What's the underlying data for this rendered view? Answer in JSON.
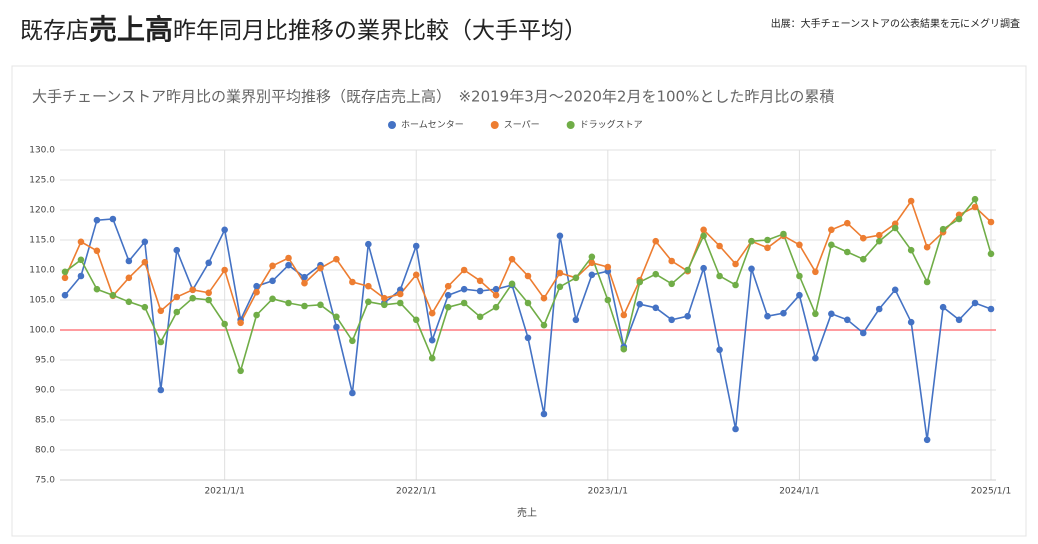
{
  "chart_data": {
    "type": "line",
    "title": [
      "既存店",
      "売上高",
      "昨年同月比推移の業界比較（大手平均）"
    ],
    "source": "出展：大手チェーンストアの公表結果を元にメグリ調査",
    "subtitle": "大手チェーンストア昨月比の業界別平均推移（既存店売上高）　※2019年3月～2020年2月を100%とした昨月比の累積",
    "xlabel": "売上",
    "legend": "top",
    "grid": true,
    "reference_line": {
      "value": 100,
      "color": "#ff7c80"
    },
    "x": [
      "2020/3/1",
      "2020/4/1",
      "2020/5/1",
      "2020/6/1",
      "2020/7/1",
      "2020/8/1",
      "2020/9/1",
      "2020/10/1",
      "2020/11/1",
      "2020/12/1",
      "2021/1/1",
      "2021/2/1",
      "2021/3/1",
      "2021/4/1",
      "2021/5/1",
      "2021/6/1",
      "2021/7/1",
      "2021/8/1",
      "2021/9/1",
      "2021/10/1",
      "2021/11/1",
      "2021/12/1",
      "2022/1/1",
      "2022/2/1",
      "2022/3/1",
      "2022/4/1",
      "2022/5/1",
      "2022/6/1",
      "2022/7/1",
      "2022/8/1",
      "2022/9/1",
      "2022/10/1",
      "2022/11/1",
      "2022/12/1",
      "2023/1/1",
      "2023/2/1",
      "2023/3/1",
      "2023/4/1",
      "2023/5/1",
      "2023/6/1",
      "2023/7/1",
      "2023/8/1",
      "2023/9/1",
      "2023/10/1",
      "2023/11/1",
      "2023/12/1",
      "2024/1/1",
      "2024/2/1",
      "2024/3/1",
      "2024/4/1",
      "2024/5/1",
      "2024/6/1",
      "2024/7/1",
      "2024/8/1",
      "2024/9/1",
      "2024/10/1",
      "2024/11/1",
      "2024/12/1",
      "2025/1/1"
    ],
    "xlim": [
      "2020/3/1",
      "2025/1/1"
    ],
    "xticks": [
      "2021/1/1",
      "2022/1/1",
      "2023/1/1",
      "2024/1/1",
      "2025/1/1"
    ],
    "ylim": [
      75,
      130
    ],
    "yticks": [
      {
        "value": 75,
        "label": "75.0"
      },
      {
        "value": 80,
        "label": "80.0"
      },
      {
        "value": 85,
        "label": "85.0"
      },
      {
        "value": 90,
        "label": "90.0"
      },
      {
        "value": 95,
        "label": "95.0"
      },
      {
        "value": 100,
        "label": "100.0"
      },
      {
        "value": 105,
        "label": "105.0"
      },
      {
        "value": 110,
        "label": "110.0"
      },
      {
        "value": 115,
        "label": "115.0"
      },
      {
        "value": 120,
        "label": "120.0"
      },
      {
        "value": 125,
        "label": "125.0"
      },
      {
        "value": 130,
        "label": "130.0"
      }
    ],
    "series": [
      {
        "name": "ホームセンター",
        "color": "#4472c4",
        "values": [
          105.8,
          109.0,
          118.3,
          118.5,
          111.5,
          114.7,
          90.0,
          113.3,
          106.7,
          111.2,
          116.7,
          101.7,
          107.3,
          108.2,
          110.8,
          108.8,
          110.8,
          100.5,
          89.5,
          114.3,
          104.5,
          106.7,
          114.0,
          98.3,
          105.8,
          106.8,
          106.5,
          106.8,
          107.5,
          98.7,
          86.0,
          115.7,
          101.7,
          109.2,
          109.8,
          97.2,
          104.3,
          103.7,
          101.7,
          102.3,
          110.3,
          96.7,
          83.5,
          110.2,
          102.3,
          102.8,
          105.8,
          95.3,
          102.7,
          101.7,
          99.5,
          103.5,
          106.7,
          101.3,
          81.7,
          103.8,
          101.7,
          104.5,
          103.5
        ]
      },
      {
        "name": "スーパー",
        "color": "#ed7d31",
        "values": [
          108.7,
          114.7,
          113.2,
          105.7,
          108.7,
          111.3,
          103.2,
          105.5,
          106.7,
          106.2,
          110.0,
          101.2,
          106.3,
          110.7,
          112.0,
          107.8,
          110.3,
          111.8,
          108.0,
          107.3,
          105.3,
          106.0,
          109.2,
          102.8,
          107.3,
          110.0,
          108.2,
          105.8,
          111.8,
          109.0,
          105.3,
          109.5,
          108.7,
          111.2,
          110.5,
          102.5,
          108.3,
          114.8,
          111.5,
          109.8,
          116.7,
          114.0,
          111.0,
          114.8,
          113.7,
          115.7,
          114.2,
          109.7,
          116.7,
          117.8,
          115.3,
          115.8,
          117.7,
          121.5,
          113.8,
          116.3,
          119.2,
          120.5,
          118.0
        ]
      },
      {
        "name": "ドラッグストア",
        "color": "#70ad47",
        "values": [
          109.7,
          111.7,
          106.8,
          105.8,
          104.7,
          103.8,
          98.0,
          103.0,
          105.3,
          105.0,
          101.0,
          93.2,
          102.5,
          105.2,
          104.5,
          104.0,
          104.2,
          102.2,
          98.2,
          104.7,
          104.2,
          104.5,
          101.7,
          95.3,
          103.8,
          104.5,
          102.2,
          103.8,
          107.7,
          104.5,
          100.8,
          107.2,
          108.7,
          112.2,
          105.0,
          96.8,
          108.0,
          109.3,
          107.7,
          110.0,
          115.7,
          109.0,
          107.5,
          114.8,
          115.0,
          116.0,
          109.0,
          102.7,
          114.2,
          113.0,
          111.8,
          114.8,
          117.0,
          113.3,
          108.0,
          116.8,
          118.5,
          121.8,
          112.7
        ]
      }
    ]
  }
}
